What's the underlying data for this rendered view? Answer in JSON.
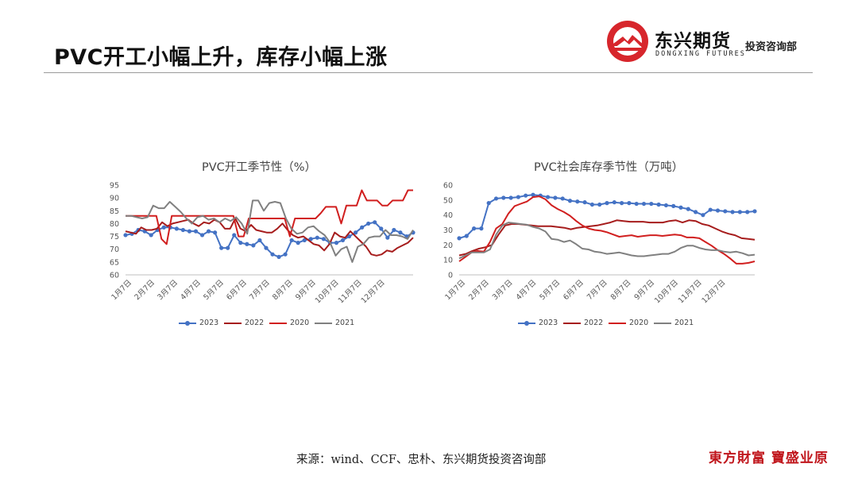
{
  "slide": {
    "title": "PVC开工小幅上升，库存小幅上涨",
    "source": "来源：wind、CCF、忠朴、东兴期货投资咨询部",
    "stamp": "東方財富 寶盛业原"
  },
  "logo": {
    "name_cn": "东兴期货",
    "name_en": "DONGXING FUTURES",
    "dept": "投资咨询部"
  },
  "colors": {
    "2023": "#4472c4",
    "2022": "#a61c1c",
    "2020": "#d11f1f",
    "2021": "#808080"
  },
  "chart_data": [
    {
      "type": "line",
      "title": "PVC开工季节性（%）",
      "ylim": [
        60,
        95
      ],
      "yticks": [
        60,
        65,
        70,
        75,
        80,
        85,
        90,
        95
      ],
      "x_ticks": [
        "1月7日",
        "2月7日",
        "3月7日",
        "4月7日",
        "5月7日",
        "6月7日",
        "7月7日",
        "8月7日",
        "9月7日",
        "10月7日",
        "11月7日",
        "12月7日"
      ],
      "legend": [
        "2023",
        "2022",
        "2020",
        "2021"
      ],
      "series": [
        {
          "name": "2023",
          "marker": true,
          "values": [
            75.5,
            76,
            77.5,
            77,
            75.5,
            77.5,
            78.5,
            78.5,
            78,
            77.5,
            77,
            77,
            75.5,
            77,
            76.5,
            70.5,
            70.5,
            75.5,
            72.5,
            72,
            71.5,
            73.5,
            70.5,
            68,
            67,
            68,
            73.5,
            72.5,
            73.5,
            74,
            74.5,
            74,
            72.5,
            72.5,
            73.5,
            75,
            76.5,
            78.5,
            80,
            80.5,
            78,
            74.5,
            77.5,
            76.5,
            75,
            76.5
          ]
        },
        {
          "name": "2022",
          "values": [
            77,
            76.5,
            76,
            78.5,
            77.5,
            77.5,
            78,
            80.5,
            79,
            80,
            80.5,
            81,
            81.5,
            80,
            79,
            80.5,
            80,
            81.5,
            80.5,
            78,
            78,
            82,
            78,
            77,
            79.5,
            77.5,
            77,
            76.5,
            76.5,
            78,
            80,
            77.5,
            75.5,
            74.5,
            75,
            73.5,
            72,
            71.5,
            69.5,
            72,
            76.5,
            75,
            74.5,
            77,
            75,
            73,
            71,
            68,
            67.5,
            68,
            69.5,
            69,
            70.5,
            71.5,
            72.5,
            74.5
          ]
        },
        {
          "name": "2020",
          "values": [
            83,
            83,
            83,
            83,
            83,
            83,
            83,
            74,
            72,
            83,
            83,
            83,
            83,
            83,
            83,
            83,
            83,
            83,
            83,
            83,
            83,
            83,
            75,
            75,
            82,
            82,
            82,
            82,
            82,
            82,
            82,
            82,
            75,
            82,
            82,
            82,
            82,
            82,
            84,
            86.5,
            86.5,
            86.5,
            80,
            87,
            87,
            87,
            93,
            89,
            89,
            89,
            87,
            87,
            89,
            89,
            89,
            93,
            93
          ]
        },
        {
          "name": "2021",
          "values": [
            83,
            83,
            82.5,
            82,
            82.5,
            87,
            86,
            86,
            88.5,
            86.5,
            84.5,
            82,
            80,
            82.5,
            83,
            81.5,
            82,
            80.5,
            82,
            81,
            82.5,
            80,
            76,
            89,
            89,
            85,
            88,
            88.5,
            88,
            82,
            78,
            76,
            76.5,
            78.5,
            79,
            77,
            75.5,
            72.5,
            67.5,
            70,
            71,
            65,
            71,
            72,
            74.5,
            75,
            75,
            77.5,
            75.5,
            75.5,
            75,
            74,
            77.5
          ]
        }
      ]
    },
    {
      "type": "line",
      "title": "PVC社会库存季节性（万吨）",
      "ylim": [
        0,
        60
      ],
      "yticks": [
        0,
        10,
        20,
        30,
        40,
        50,
        60
      ],
      "x_ticks": [
        "1月7日",
        "2月7日",
        "3月7日",
        "4月7日",
        "5月7日",
        "6月7日",
        "7月7日",
        "8月7日",
        "9月7日",
        "10月7日",
        "11月7日",
        "12月7日"
      ],
      "legend": [
        "2023",
        "2022",
        "2020",
        "2021"
      ],
      "series": [
        {
          "name": "2023",
          "marker": true,
          "values": [
            24.5,
            26,
            31,
            31,
            48,
            51,
            51.5,
            51.5,
            52,
            53,
            53.5,
            53,
            52,
            51.5,
            51,
            49.5,
            49,
            48.5,
            47,
            47,
            48,
            48.5,
            48,
            48,
            47.5,
            47.5,
            47.5,
            47,
            46.5,
            46,
            45,
            44,
            42,
            40,
            43.5,
            43,
            42.5,
            42,
            42,
            42,
            42.5
          ]
        },
        {
          "name": "2022",
          "values": [
            13,
            14,
            16,
            17.5,
            18.5,
            20,
            27,
            33,
            34,
            34,
            33.5,
            33,
            32.5,
            32.5,
            32.5,
            32,
            31.5,
            30.5,
            31.5,
            32,
            32.5,
            33,
            34,
            35,
            36.5,
            36,
            35.5,
            35.5,
            35.5,
            35,
            35,
            35,
            36,
            36.5,
            35,
            36.5,
            36,
            34,
            33,
            31,
            29,
            27.5,
            26.5,
            24.5,
            24,
            23.5
          ]
        },
        {
          "name": "2020",
          "values": [
            9,
            12,
            15,
            16,
            15.5,
            22,
            31,
            34,
            41,
            46,
            47.5,
            49,
            52,
            52.5,
            50.5,
            46.5,
            44,
            42,
            39.5,
            36,
            33,
            31,
            30,
            29.5,
            28.5,
            27,
            25.5,
            26,
            26.5,
            25.5,
            26,
            26.5,
            26.5,
            26,
            26.5,
            27,
            26.5,
            25,
            25,
            24.5,
            22,
            19.5,
            16.5,
            14,
            11,
            7.5,
            7.5,
            8,
            9
          ]
        },
        {
          "name": "2021",
          "values": [
            11,
            13,
            15,
            15,
            15,
            17,
            27,
            33,
            35,
            34.5,
            34,
            33.5,
            32,
            31,
            29,
            24,
            23.5,
            22,
            23,
            20.5,
            17.5,
            17,
            15.5,
            15,
            14,
            14.5,
            15,
            14,
            13,
            12.5,
            12.5,
            13,
            13.5,
            14,
            14,
            15.5,
            18,
            19.5,
            19.5,
            18,
            17,
            16.5,
            16.5,
            15.5,
            15,
            15.5,
            14.5,
            13,
            13.5
          ]
        }
      ]
    }
  ]
}
